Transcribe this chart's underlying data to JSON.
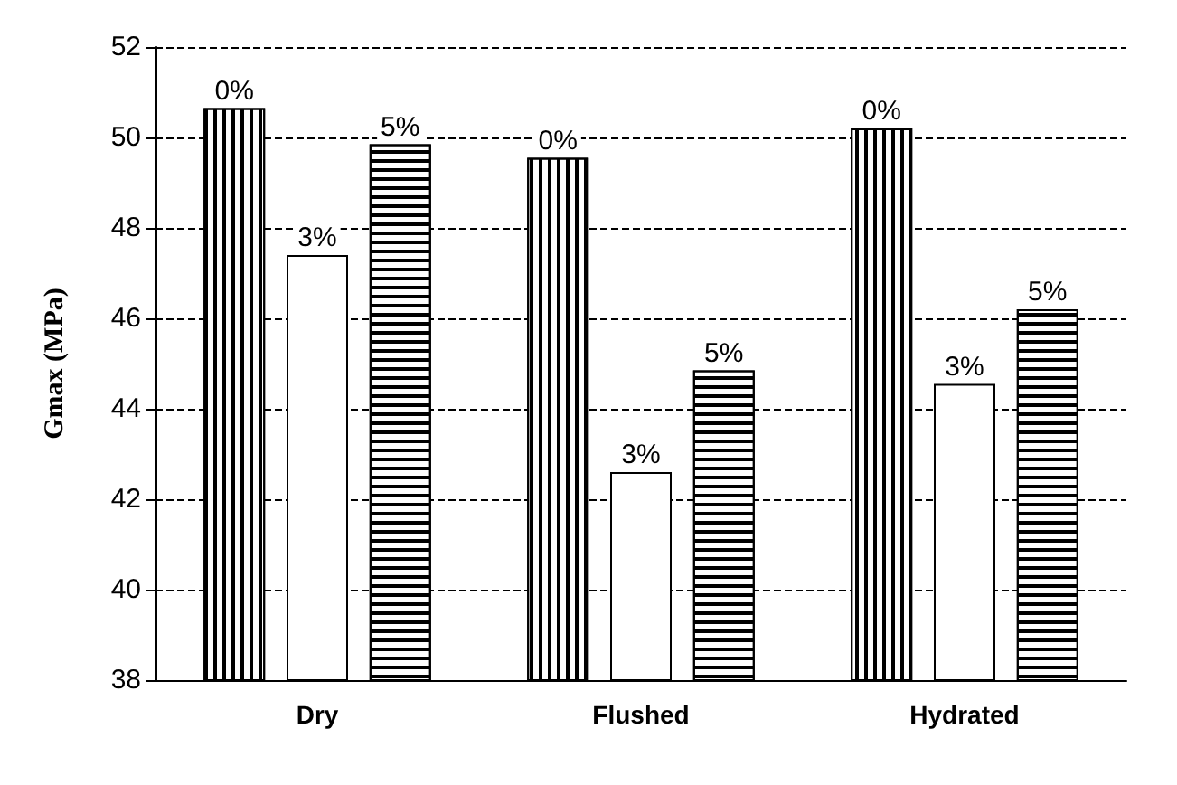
{
  "chart_data": {
    "type": "bar",
    "ylabel": "Gmax (MPa)",
    "categories": [
      "Dry",
      "Flushed",
      "Hydrated"
    ],
    "series": [
      {
        "name": "0%",
        "color": "#ffffff",
        "values": [
          50.65,
          49.55,
          50.2
        ]
      },
      {
        "name": "3%",
        "color": "#ffffff",
        "values": [
          47.4,
          42.6,
          44.55
        ]
      },
      {
        "name": "5%",
        "color": "#ffffff",
        "values": [
          49.85,
          44.85,
          46.2
        ]
      }
    ],
    "ylim": [
      38,
      52
    ],
    "yticks": [
      38,
      40,
      42,
      44,
      46,
      48,
      50,
      52
    ],
    "grid": "y",
    "legend": false
  }
}
